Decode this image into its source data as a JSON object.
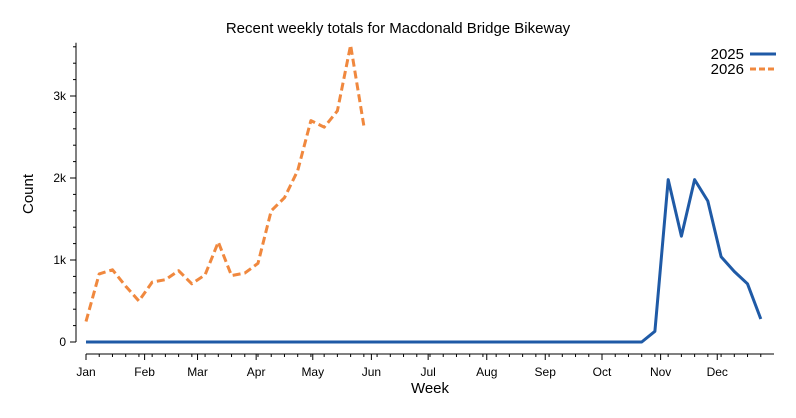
{
  "chart_data": {
    "type": "line",
    "title": "Recent weekly totals for Macdonald Bridge Bikeway",
    "xlabel": "Week",
    "ylabel": "Count",
    "x_tick_labels": [
      "Jan",
      "Feb",
      "Mar",
      "Apr",
      "May",
      "Jun",
      "Jul",
      "Aug",
      "Sep",
      "Oct",
      "Nov",
      "Dec"
    ],
    "y_ticks": [
      0,
      1000,
      2000,
      3000
    ],
    "y_tick_labels": [
      "0",
      "1k",
      "2k",
      "3k"
    ],
    "ylim": [
      0,
      3650
    ],
    "legend_position": "top-right",
    "grid": false,
    "series": [
      {
        "name": "2025",
        "color": "#1f5aa6",
        "dash": "solid",
        "values": [
          0,
          0,
          0,
          0,
          0,
          0,
          0,
          0,
          0,
          0,
          0,
          0,
          0,
          0,
          0,
          0,
          0,
          0,
          0,
          0,
          0,
          0,
          0,
          0,
          0,
          0,
          0,
          0,
          0,
          0,
          0,
          0,
          0,
          0,
          0,
          0,
          0,
          0,
          0,
          0,
          0,
          0,
          0,
          130,
          1980,
          1290,
          1980,
          1720,
          1040,
          860,
          710,
          280
        ]
      },
      {
        "name": "2026",
        "color": "#f0883e",
        "dash": "dashed",
        "values": [
          250,
          830,
          880,
          680,
          500,
          730,
          760,
          870,
          710,
          820,
          1220,
          810,
          840,
          960,
          1600,
          1760,
          2090,
          2700,
          2620,
          2820,
          3620,
          2640
        ]
      }
    ]
  }
}
